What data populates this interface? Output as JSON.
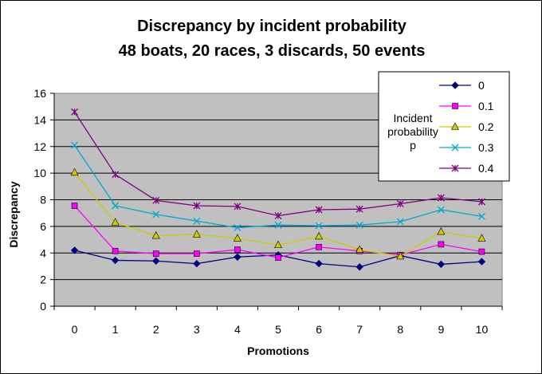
{
  "chart_data": {
    "type": "line",
    "title": "Discrepancy by incident probability",
    "subtitle": "48 boats, 20 races, 3 discards, 50 events",
    "xlabel": "Promotions",
    "ylabel": "Discrepancy",
    "x": [
      0,
      1,
      2,
      3,
      4,
      5,
      6,
      7,
      8,
      9,
      10
    ],
    "ylim": [
      0,
      16
    ],
    "yticks": [
      0,
      2,
      4,
      6,
      8,
      10,
      12,
      14,
      16
    ],
    "grid": true,
    "legend_placement": "top-right",
    "legend_annotation": [
      "Incident",
      "probability",
      "p"
    ],
    "series": [
      {
        "name": "0",
        "color": "#000080",
        "marker": "diamond",
        "values": [
          4.2,
          3.45,
          3.4,
          3.2,
          3.7,
          3.85,
          3.2,
          2.95,
          3.8,
          3.15,
          3.35
        ]
      },
      {
        "name": "0.1",
        "color": "#ff00ff",
        "marker": "square",
        "values": [
          7.55,
          4.15,
          3.95,
          3.95,
          4.25,
          3.65,
          4.45,
          4.15,
          3.85,
          4.65,
          4.1
        ]
      },
      {
        "name": "0.2",
        "color": "#cccc00",
        "marker": "triangle",
        "values": [
          10.05,
          6.3,
          5.3,
          5.4,
          5.1,
          4.6,
          5.25,
          4.25,
          3.75,
          5.6,
          5.1
        ]
      },
      {
        "name": "0.3",
        "color": "#00aacc",
        "marker": "x",
        "values": [
          12.1,
          7.55,
          6.9,
          6.4,
          5.9,
          6.1,
          6.05,
          6.1,
          6.35,
          7.25,
          6.75
        ]
      },
      {
        "name": "0.4",
        "color": "#800080",
        "marker": "star",
        "values": [
          14.6,
          9.9,
          7.95,
          7.55,
          7.5,
          6.8,
          7.25,
          7.3,
          7.7,
          8.15,
          7.85
        ]
      }
    ]
  }
}
